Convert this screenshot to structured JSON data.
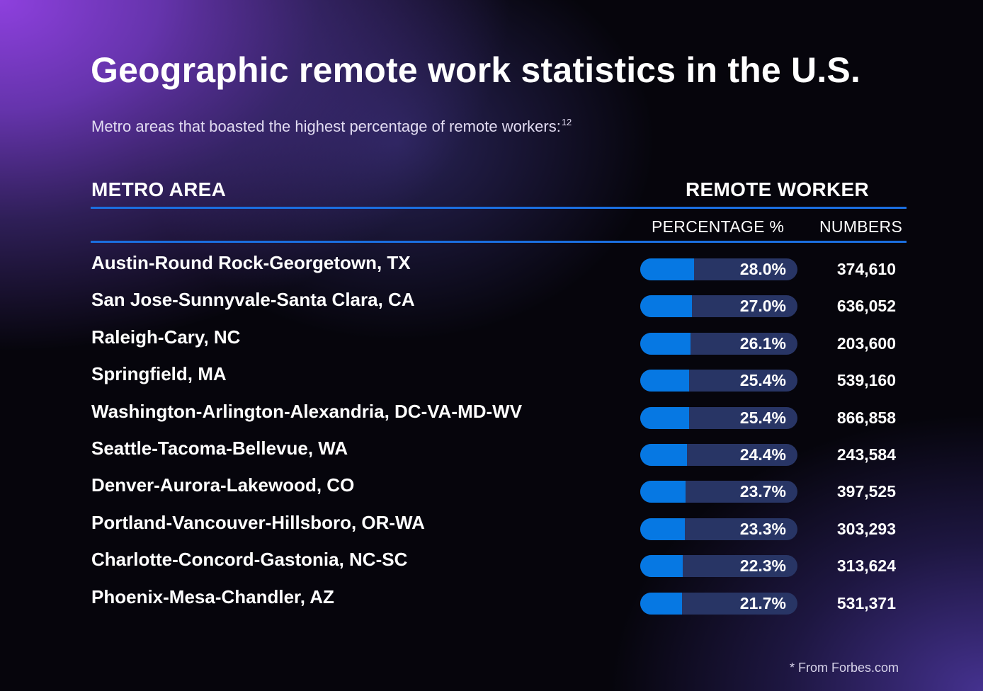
{
  "chart_data": {
    "type": "table",
    "title": "Geographic remote work statistics in the U.S.",
    "subtitle": "Metro areas that boasted the highest percentage of remote workers:",
    "subtitle_ref": "12",
    "column_headers": {
      "metro_area": "METRO AREA",
      "remote_worker": "REMOTE WORKER",
      "percentage": "PERCENTAGE %",
      "numbers": "NUMBERS"
    },
    "rows": [
      {
        "metro": "Austin-Round Rock-Georgetown, TX",
        "percent": 28.0,
        "percent_label": "28.0%",
        "workers": "374,610"
      },
      {
        "metro": "San Jose-Sunnyvale-Santa Clara, CA",
        "percent": 27.0,
        "percent_label": "27.0%",
        "workers": "636,052"
      },
      {
        "metro": "Raleigh-Cary, NC",
        "percent": 26.1,
        "percent_label": "26.1%",
        "workers": "203,600"
      },
      {
        "metro": "Springfield, MA",
        "percent": 25.4,
        "percent_label": "25.4%",
        "workers": "539,160"
      },
      {
        "metro": "Washington-Arlington-Alexandria, DC-VA-MD-WV",
        "percent": 25.4,
        "percent_label": "25.4%",
        "workers": "866,858"
      },
      {
        "metro": "Seattle-Tacoma-Bellevue, WA",
        "percent": 24.4,
        "percent_label": "24.4%",
        "workers": "243,584"
      },
      {
        "metro": "Denver-Aurora-Lakewood, CO",
        "percent": 23.7,
        "percent_label": "23.7%",
        "workers": "397,525"
      },
      {
        "metro": "Portland-Vancouver-Hillsboro, OR-WA",
        "percent": 23.3,
        "percent_label": "23.3%",
        "workers": "303,293"
      },
      {
        "metro": "Charlotte-Concord-Gastonia, NC-SC",
        "percent": 22.3,
        "percent_label": "22.3%",
        "workers": "313,624"
      },
      {
        "metro": "Phoenix-Mesa-Chandler, AZ",
        "percent": 21.7,
        "percent_label": "21.7%",
        "workers": "531,371"
      }
    ],
    "bar_max_percent": 82,
    "source": "* From Forbes.com"
  },
  "colors": {
    "bar_fill": "#0678e3",
    "bar_track": "#283565",
    "rule": "#1b6fe0",
    "text": "#ffffff"
  }
}
